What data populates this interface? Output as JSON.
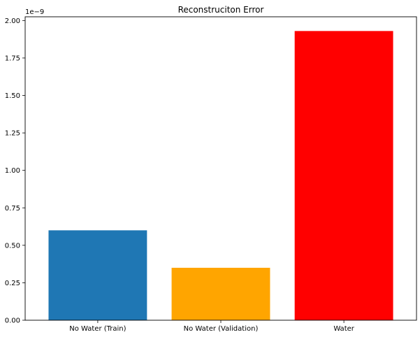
{
  "chart_data": {
    "type": "bar",
    "title": "Reconstruciton Error",
    "xlabel": "",
    "ylabel": "",
    "categories": [
      "No Water (Train)",
      "No Water (Validation)",
      "Water"
    ],
    "values": [
      0.6,
      0.35,
      1.93
    ],
    "colors": [
      "#1f77b4",
      "#ffa500",
      "#ff0000"
    ],
    "y_offset_label": "1e−9",
    "yticks": [
      0.0,
      0.25,
      0.5,
      0.75,
      1.0,
      1.25,
      1.5,
      1.75,
      2.0
    ],
    "ytick_labels": [
      "0.00",
      "0.25",
      "0.50",
      "0.75",
      "1.00",
      "1.25",
      "1.50",
      "1.75",
      "2.00"
    ],
    "ylim": [
      0,
      2.025
    ],
    "grid": false,
    "legend": false
  }
}
